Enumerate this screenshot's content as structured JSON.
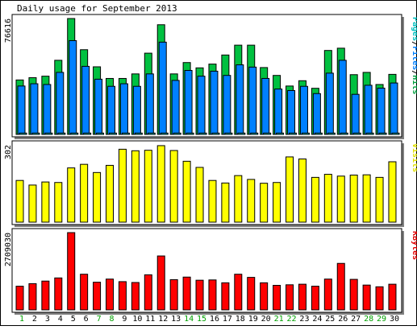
{
  "chart_data": [
    {
      "type": "bar",
      "title": "Daily usage for September 2013",
      "ymax_label": "76616",
      "legend": [
        {
          "text": "Pages",
          "color": "#00c0c0"
        },
        {
          "text": "Files",
          "color": "#0080ff"
        },
        {
          "text": "Hits",
          "color": "#00a040"
        }
      ],
      "categories": [
        "1",
        "2",
        "3",
        "4",
        "5",
        "6",
        "7",
        "8",
        "9",
        "10",
        "11",
        "12",
        "13",
        "14",
        "15",
        "16",
        "17",
        "18",
        "19",
        "20",
        "21",
        "22",
        "23",
        "24",
        "25",
        "26",
        "27",
        "28",
        "29",
        "30"
      ],
      "weekend_days": [
        1,
        7,
        8,
        14,
        15,
        21,
        22,
        28,
        29
      ],
      "ylim": [
        0,
        76616
      ],
      "series": [
        {
          "name": "Hits",
          "color": "#00c040",
          "values": [
            36000,
            37500,
            38500,
            49000,
            76616,
            56000,
            44700,
            37000,
            37000,
            40000,
            53700,
            72500,
            40000,
            47500,
            44000,
            46500,
            52500,
            59000,
            59000,
            44200,
            39000,
            32000,
            35500,
            30500,
            55500,
            57000,
            39500,
            41000,
            33000,
            39700
          ]
        },
        {
          "name": "Files",
          "color": "#0080ff",
          "values": [
            32000,
            33500,
            33000,
            41000,
            62000,
            45000,
            36500,
            31800,
            33500,
            31800,
            40000,
            61000,
            35700,
            42300,
            38500,
            41800,
            39000,
            46000,
            44500,
            37000,
            30000,
            29000,
            31800,
            27000,
            40500,
            49000,
            26500,
            32500,
            30600,
            34000
          ]
        },
        {
          "name": "Pages",
          "color": "#00c0c0",
          "values": [
            900,
            900,
            900,
            900,
            900,
            900,
            900,
            900,
            900,
            900,
            900,
            900,
            900,
            900,
            900,
            900,
            900,
            900,
            900,
            900,
            900,
            900,
            900,
            900,
            900,
            900,
            900,
            900,
            900,
            900
          ]
        }
      ]
    },
    {
      "type": "bar",
      "ymax_label": "302",
      "legend": [
        {
          "text": "Visits",
          "color": "#e0e000"
        }
      ],
      "categories": [
        "1",
        "2",
        "3",
        "4",
        "5",
        "6",
        "7",
        "8",
        "9",
        "10",
        "11",
        "12",
        "13",
        "14",
        "15",
        "16",
        "17",
        "18",
        "19",
        "20",
        "21",
        "22",
        "23",
        "24",
        "25",
        "26",
        "27",
        "28",
        "29",
        "30"
      ],
      "ylim": [
        0,
        302
      ],
      "series": [
        {
          "name": "Visits",
          "color": "#ffff00",
          "values": [
            163,
            145,
            157,
            155,
            212,
            226,
            194,
            222,
            285,
            279,
            281,
            299,
            280,
            238,
            214,
            163,
            153,
            182,
            167,
            152,
            155,
            255,
            247,
            175,
            187,
            180,
            184,
            185,
            175,
            236
          ]
        }
      ]
    },
    {
      "type": "bar",
      "ymax_label": "2709030",
      "legend": [
        {
          "text": "KBytes",
          "color": "#e00000"
        }
      ],
      "categories": [
        "1",
        "2",
        "3",
        "4",
        "5",
        "6",
        "7",
        "8",
        "9",
        "10",
        "11",
        "12",
        "13",
        "14",
        "15",
        "16",
        "17",
        "18",
        "19",
        "20",
        "21",
        "22",
        "23",
        "24",
        "25",
        "26",
        "27",
        "28",
        "29",
        "30"
      ],
      "ylim": [
        0,
        2709030
      ],
      "series": [
        {
          "name": "KBytes",
          "color": "#ff0000",
          "values": [
            830000,
            920000,
            1010000,
            1120000,
            2709030,
            1250000,
            970000,
            1080000,
            990000,
            960000,
            1230000,
            1890000,
            1060000,
            1150000,
            1040000,
            1050000,
            950000,
            1250000,
            1140000,
            950000,
            860000,
            880000,
            900000,
            830000,
            1080000,
            1630000,
            1070000,
            870000,
            810000,
            900000
          ]
        }
      ]
    }
  ]
}
